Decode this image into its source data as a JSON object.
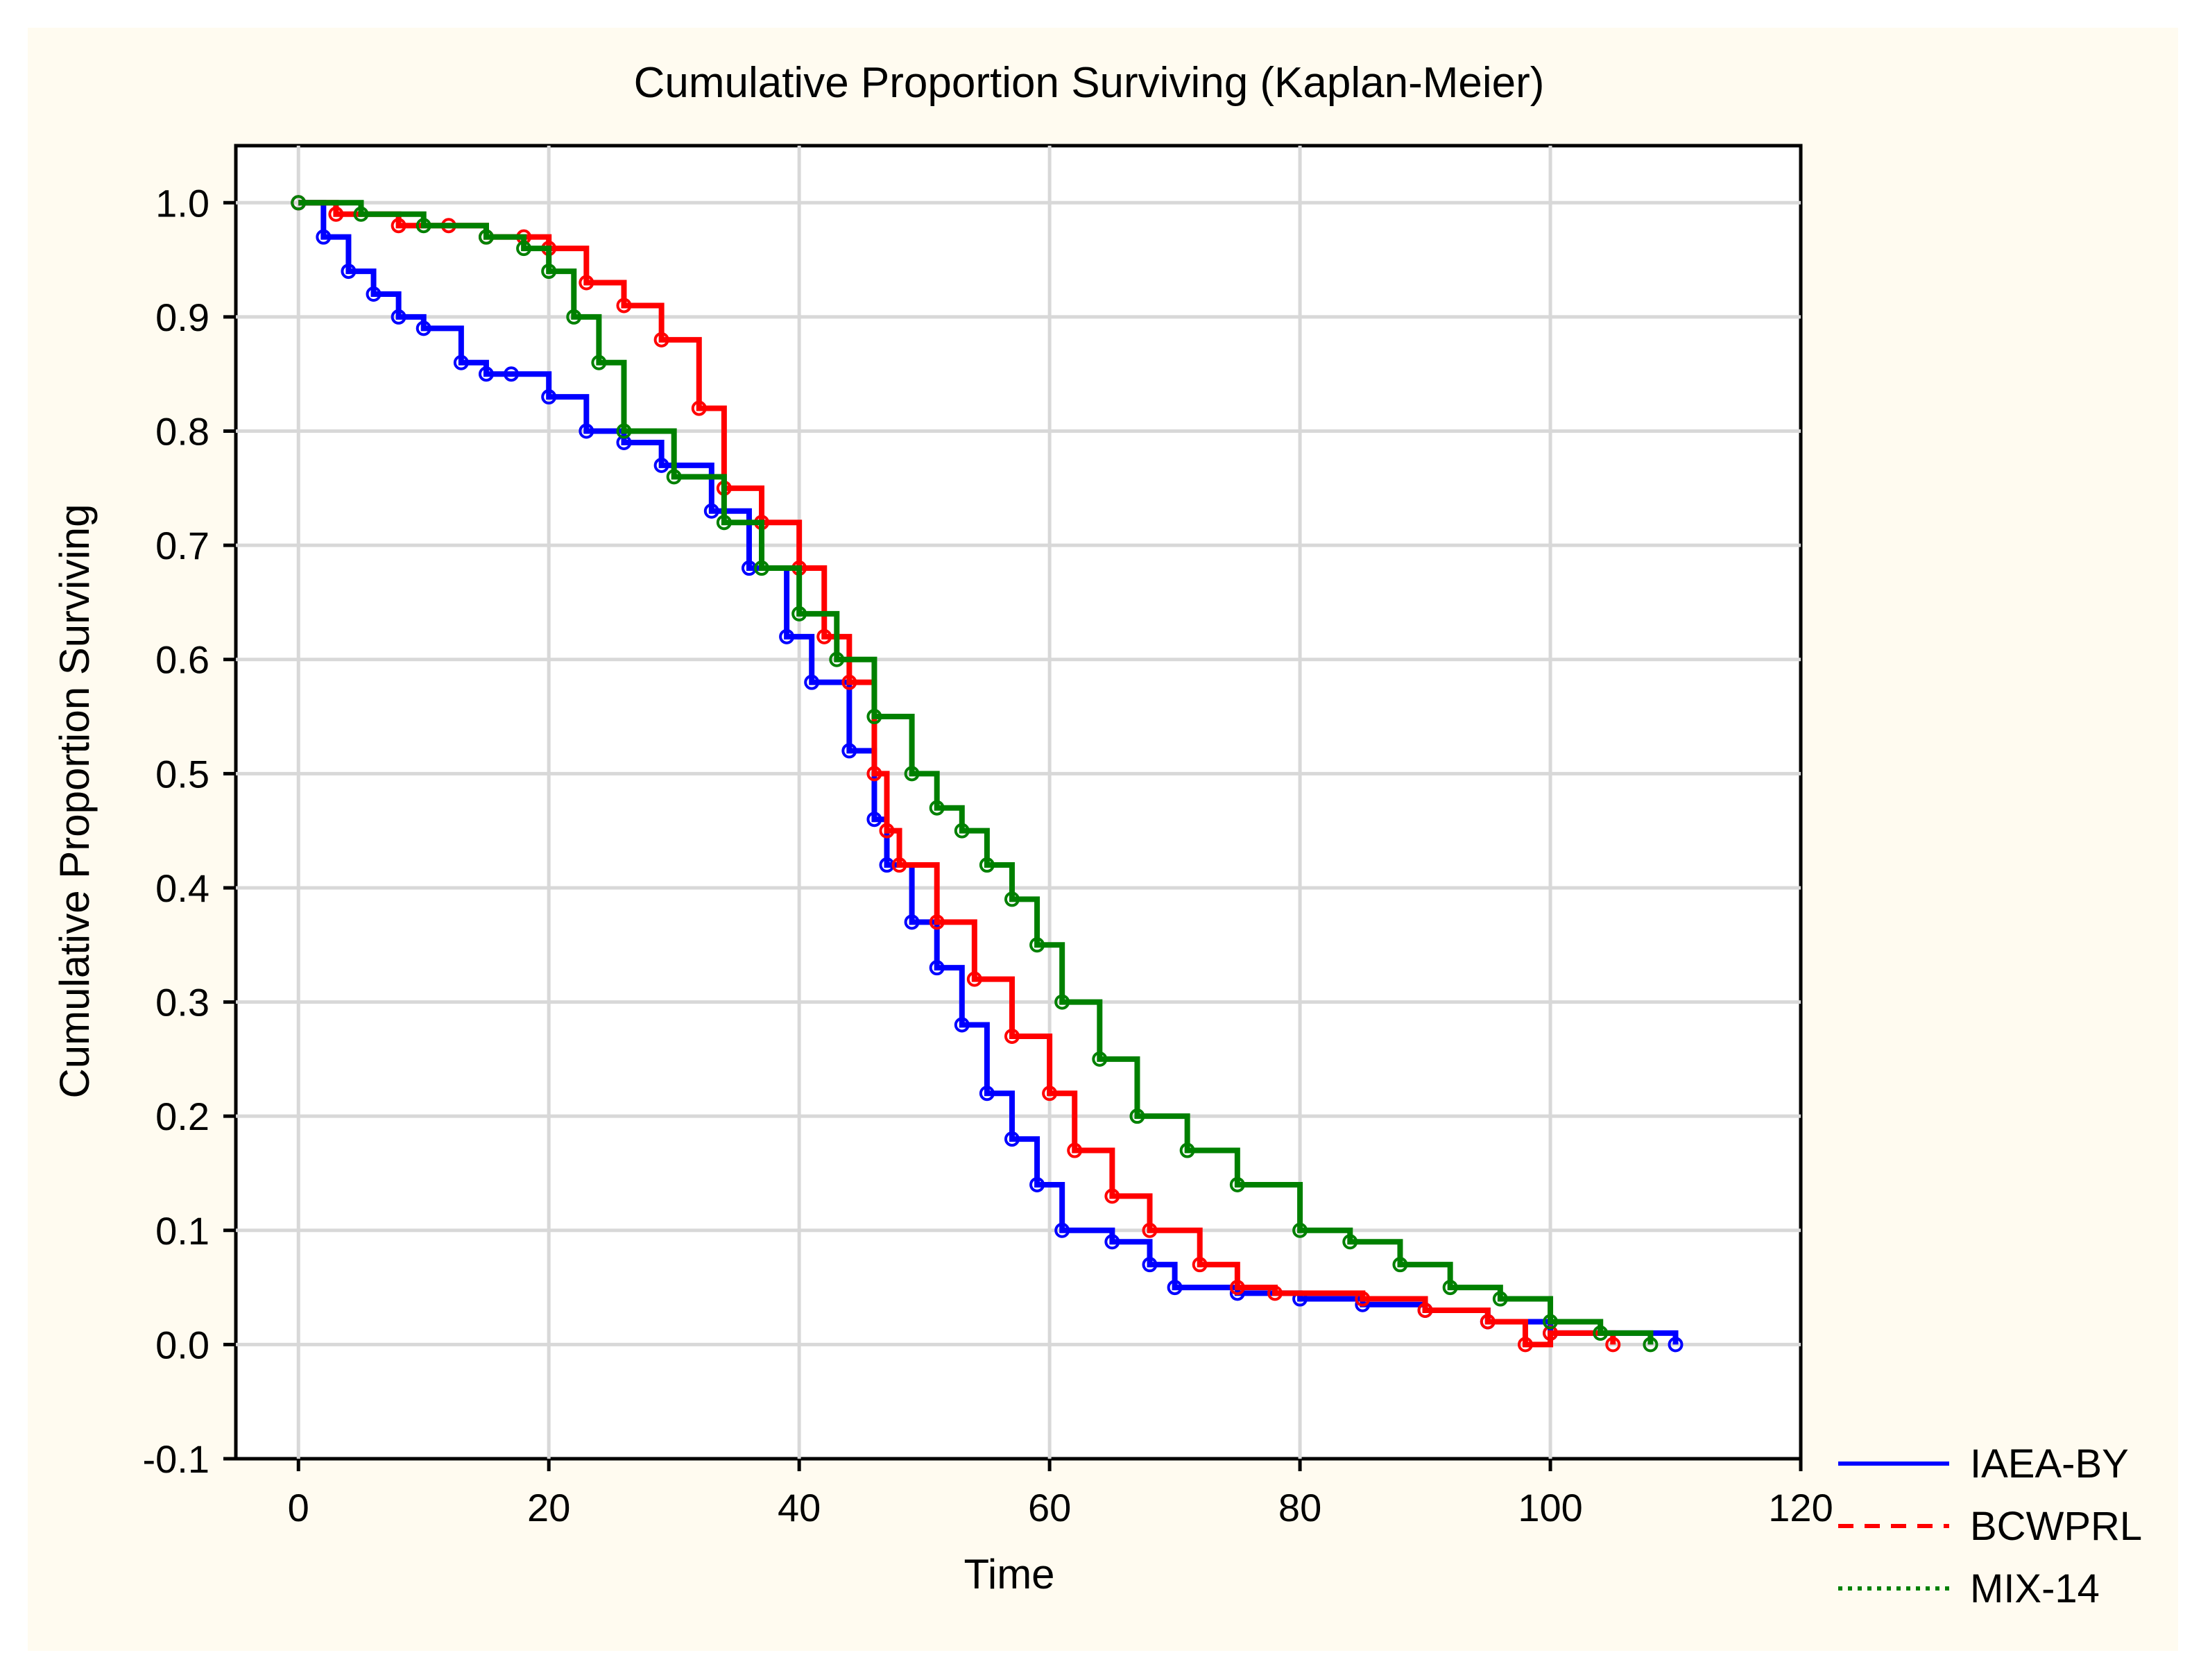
{
  "chart_data": {
    "type": "line",
    "title": "Cumulative Proportion Surviving (Kaplan-Meier)",
    "xlabel": "Time",
    "ylabel": "Cumulative Proportion Surviving",
    "xlim": [
      -5,
      120
    ],
    "ylim": [
      -0.1,
      1.05
    ],
    "x_ticks": [
      0,
      20,
      40,
      60,
      80,
      100,
      120
    ],
    "y_ticks": [
      -0.1,
      0.0,
      0.1,
      0.2,
      0.3,
      0.4,
      0.5,
      0.6,
      0.7,
      0.8,
      0.9,
      1.0
    ],
    "grid": true,
    "legend_position": "bottom-right-outside",
    "series": [
      {
        "name": "IAEA-BY",
        "color": "#0000ff",
        "line_style": "solid",
        "x": [
          0,
          2,
          4,
          6,
          8,
          10,
          13,
          15,
          17,
          20,
          23,
          26,
          29,
          33,
          36,
          39,
          41,
          44,
          46,
          47,
          49,
          51,
          53,
          55,
          57,
          59,
          61,
          65,
          68,
          70,
          75,
          80,
          85,
          90,
          95,
          100,
          110
        ],
        "y": [
          1.0,
          0.97,
          0.94,
          0.92,
          0.9,
          0.89,
          0.86,
          0.85,
          0.85,
          0.83,
          0.8,
          0.79,
          0.77,
          0.73,
          0.68,
          0.62,
          0.58,
          0.52,
          0.46,
          0.42,
          0.37,
          0.33,
          0.28,
          0.22,
          0.18,
          0.14,
          0.1,
          0.09,
          0.07,
          0.05,
          0.045,
          0.04,
          0.035,
          0.03,
          0.02,
          0.01,
          0.0
        ]
      },
      {
        "name": "BCWPRL",
        "color": "#ff0000",
        "line_style": "dashed",
        "x": [
          0,
          3,
          8,
          12,
          15,
          18,
          20,
          23,
          26,
          29,
          32,
          34,
          37,
          40,
          42,
          44,
          46,
          47,
          48,
          51,
          54,
          57,
          60,
          62,
          65,
          68,
          72,
          75,
          78,
          85,
          90,
          95,
          98,
          100,
          105
        ],
        "y": [
          1.0,
          0.99,
          0.98,
          0.98,
          0.97,
          0.97,
          0.96,
          0.93,
          0.91,
          0.88,
          0.82,
          0.75,
          0.72,
          0.68,
          0.62,
          0.58,
          0.5,
          0.45,
          0.42,
          0.37,
          0.32,
          0.27,
          0.22,
          0.17,
          0.13,
          0.1,
          0.07,
          0.05,
          0.045,
          0.04,
          0.03,
          0.02,
          0.0,
          0.01,
          0.0
        ]
      },
      {
        "name": "MIX-14",
        "color": "#008000",
        "line_style": "dotted",
        "x": [
          0,
          5,
          10,
          15,
          18,
          20,
          22,
          24,
          26,
          30,
          34,
          37,
          40,
          43,
          46,
          49,
          51,
          53,
          55,
          57,
          59,
          61,
          64,
          67,
          71,
          75,
          80,
          84,
          88,
          92,
          96,
          100,
          104,
          108
        ],
        "y": [
          1.0,
          0.99,
          0.98,
          0.97,
          0.96,
          0.94,
          0.9,
          0.86,
          0.8,
          0.76,
          0.72,
          0.68,
          0.64,
          0.6,
          0.55,
          0.5,
          0.47,
          0.45,
          0.42,
          0.39,
          0.35,
          0.3,
          0.25,
          0.2,
          0.17,
          0.14,
          0.1,
          0.09,
          0.07,
          0.05,
          0.04,
          0.02,
          0.01,
          0.0
        ]
      }
    ]
  }
}
